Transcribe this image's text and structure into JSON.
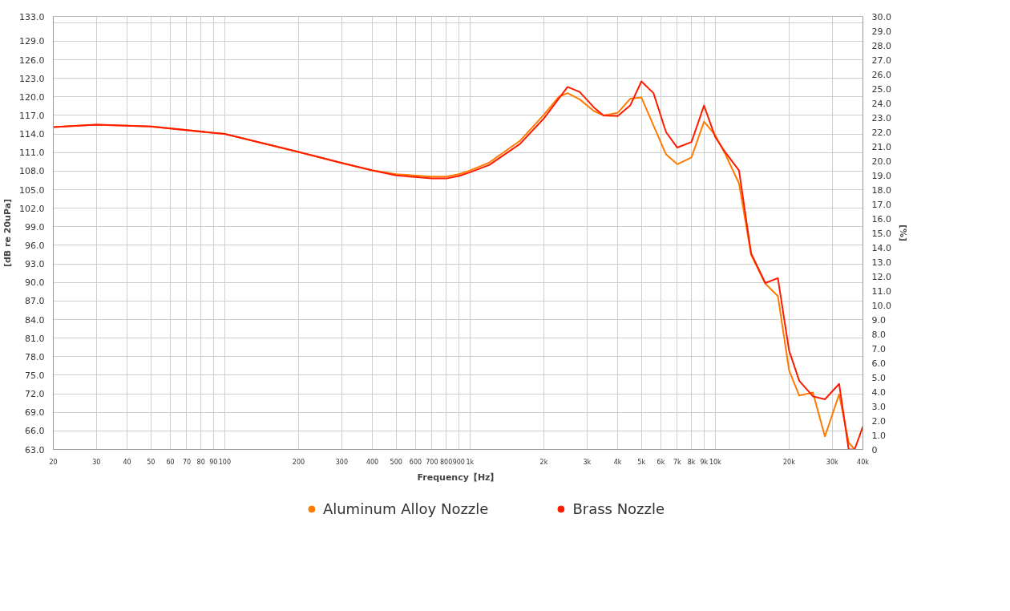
{
  "chart_data": {
    "type": "line",
    "xlabel": "Frequency【Hz】",
    "ylabel": "[dB re 20uPa]",
    "y2label": "[%]",
    "log": "x",
    "grid": true,
    "legend": "bottom",
    "xlim": [
      20,
      40000
    ],
    "xticks": [
      20,
      30,
      40,
      50,
      60,
      70,
      80,
      90,
      100,
      200,
      300,
      400,
      500,
      600,
      700,
      800,
      900,
      {
        "value": 1000,
        "label": "1k"
      },
      {
        "value": 2000,
        "label": "2k"
      },
      {
        "value": 3000,
        "label": "3k"
      },
      {
        "value": 4000,
        "label": "4k"
      },
      {
        "value": 5000,
        "label": "5k"
      },
      {
        "value": 6000,
        "label": "6k"
      },
      {
        "value": 7000,
        "label": "7k"
      },
      {
        "value": 8000,
        "label": "8k"
      },
      {
        "value": 9000,
        "label": "9k"
      },
      {
        "value": 10000,
        "label": "10k"
      },
      {
        "value": 20000,
        "label": "20k"
      },
      {
        "value": 30000,
        "label": "30k"
      },
      {
        "value": 40000,
        "label": "40k"
      }
    ],
    "ylim": [
      63,
      133
    ],
    "yticks": [
      {
        "value": 63,
        "label": "63.0"
      },
      {
        "value": 66,
        "label": "66.0"
      },
      {
        "value": 69,
        "label": "69.0"
      },
      {
        "value": 72,
        "label": "72.0"
      },
      {
        "value": 75,
        "label": "75.0"
      },
      {
        "value": 78,
        "label": "78.0"
      },
      {
        "value": 81,
        "label": "81.0"
      },
      {
        "value": 84,
        "label": "84.0"
      },
      {
        "value": 87,
        "label": "87.0"
      },
      {
        "value": 90,
        "label": "90.0"
      },
      {
        "value": 93,
        "label": "93.0"
      },
      {
        "value": 96,
        "label": "96.0"
      },
      {
        "value": 99,
        "label": "99.0"
      },
      {
        "value": 102,
        "label": "102.0"
      },
      {
        "value": 105,
        "label": "105.0"
      },
      {
        "value": 108,
        "label": "108.0"
      },
      {
        "value": 111,
        "label": "111.0"
      },
      {
        "value": 114,
        "label": "114.0"
      },
      {
        "value": 117,
        "label": "117.0"
      },
      {
        "value": 120,
        "label": "120.0"
      },
      {
        "value": 123,
        "label": "123.0"
      },
      {
        "value": 126,
        "label": "126.0"
      },
      {
        "value": 129,
        "label": "129.0"
      },
      {
        "value": 132,
        "label": null
      },
      {
        "value": 133,
        "label": "133.0"
      }
    ],
    "y2lim": [
      0,
      30
    ],
    "y2ticks": [
      0,
      {
        "value": 1,
        "label": "1.0"
      },
      {
        "value": 2,
        "label": "2.0"
      },
      {
        "value": 3,
        "label": "3.0"
      },
      {
        "value": 4,
        "label": "4.0"
      },
      {
        "value": 5,
        "label": "5.0"
      },
      {
        "value": 6,
        "label": "6.0"
      },
      {
        "value": 7,
        "label": "7.0"
      },
      {
        "value": 8,
        "label": "8.0"
      },
      {
        "value": 9,
        "label": "9.0"
      },
      {
        "value": 10,
        "label": "10.0"
      },
      {
        "value": 11,
        "label": "11.0"
      },
      {
        "value": 12,
        "label": "12.0"
      },
      {
        "value": 13,
        "label": "13.0"
      },
      {
        "value": 14,
        "label": "14.0"
      },
      {
        "value": 15,
        "label": "15.0"
      },
      {
        "value": 16,
        "label": "16.0"
      },
      {
        "value": 17,
        "label": "17.0"
      },
      {
        "value": 18,
        "label": "18.0"
      },
      {
        "value": 19,
        "label": "19.0"
      },
      {
        "value": 20,
        "label": "20.0"
      },
      {
        "value": 21,
        "label": "21.0"
      },
      {
        "value": 22,
        "label": "22.0"
      },
      {
        "value": 23,
        "label": "23.0"
      },
      {
        "value": 24,
        "label": "24.0"
      },
      {
        "value": 25,
        "label": "25.0"
      },
      {
        "value": 26,
        "label": "26.0"
      },
      {
        "value": 27,
        "label": "27.0"
      },
      {
        "value": 28,
        "label": "28.0"
      },
      {
        "value": 29,
        "label": "29.0"
      },
      {
        "value": 30,
        "label": "30.0"
      }
    ],
    "series": [
      {
        "name": "Aluminum Alloy Nozzle",
        "color": "#ff7a00",
        "x": [
          20,
          30,
          50,
          100,
          200,
          300,
          400,
          500,
          700,
          800,
          900,
          1000,
          1200,
          1600,
          2000,
          2300,
          2500,
          2800,
          3200,
          3500,
          4000,
          4500,
          5000,
          6300,
          7000,
          8000,
          9000,
          10000,
          11000,
          12500,
          14000,
          16000,
          18000,
          20000,
          22000,
          25000,
          28000,
          32000,
          35000,
          37000
        ],
        "values": [
          115.1,
          115.5,
          115.2,
          114.0,
          111.1,
          109.3,
          108.1,
          107.5,
          107.1,
          107.1,
          107.5,
          108.1,
          109.4,
          112.9,
          117.1,
          120.0,
          120.6,
          119.6,
          117.7,
          117.0,
          117.4,
          119.7,
          119.9,
          110.7,
          109.1,
          110.2,
          116.0,
          113.8,
          110.7,
          106.0,
          94.5,
          89.8,
          87.8,
          75.8,
          71.7,
          72.2,
          65.1,
          71.9,
          64.1,
          63.0
        ]
      },
      {
        "name": "Brass Nozzle",
        "color": "#ff1a00",
        "x": [
          20,
          30,
          50,
          100,
          200,
          300,
          400,
          500,
          700,
          800,
          900,
          1000,
          1200,
          1600,
          2000,
          2500,
          2800,
          3200,
          3500,
          4000,
          4500,
          5000,
          5600,
          6300,
          7000,
          8000,
          9000,
          10000,
          11000,
          12500,
          14000,
          16000,
          18000,
          20000,
          22000,
          25000,
          28000,
          32000,
          35000,
          37000,
          40000
        ],
        "values": [
          115.1,
          115.5,
          115.2,
          114.0,
          111.1,
          109.3,
          108.1,
          107.3,
          106.8,
          106.8,
          107.2,
          107.8,
          109.0,
          112.4,
          116.5,
          121.6,
          120.8,
          118.3,
          117.0,
          116.9,
          118.6,
          122.5,
          120.6,
          114.3,
          111.8,
          112.7,
          118.6,
          113.5,
          111.0,
          108.1,
          94.7,
          89.9,
          90.7,
          79.0,
          74.1,
          71.6,
          71.1,
          73.6,
          63.0,
          63.0,
          66.7
        ]
      }
    ]
  }
}
